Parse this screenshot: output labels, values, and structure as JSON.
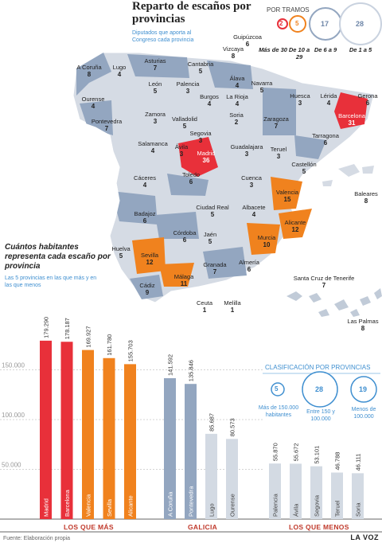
{
  "header": {
    "title": "Reparto de escaños por provincias",
    "subtitle": "Diputados que aporta al Congreso cada provincia"
  },
  "legend_tramos": {
    "title": "POR TRAMOS",
    "items": [
      {
        "value": "2",
        "label": "Más de 30",
        "color": "#e8303a"
      },
      {
        "value": "5",
        "label": "De 10 a 29",
        "color": "#f0821e"
      },
      {
        "value": "17",
        "label": "De 6 a 9",
        "color": "#93a6c0"
      },
      {
        "value": "28",
        "label": "De 1 a 5",
        "color": "#c9d2df"
      }
    ]
  },
  "provinces": [
    {
      "name": "A Coruña",
      "seats": "8"
    },
    {
      "name": "Lugo",
      "seats": "4"
    },
    {
      "name": "Asturias",
      "seats": "7"
    },
    {
      "name": "Cantabria",
      "seats": "5"
    },
    {
      "name": "Vizcaya",
      "seats": "8"
    },
    {
      "name": "Guipúzcoa",
      "seats": "6"
    },
    {
      "name": "Álava",
      "seats": "4"
    },
    {
      "name": "Navarra",
      "seats": "5"
    },
    {
      "name": "Huesca",
      "seats": "3"
    },
    {
      "name": "Lérida",
      "seats": "4"
    },
    {
      "name": "Gerona",
      "seats": "6"
    },
    {
      "name": "Barcelona",
      "seats": "31"
    },
    {
      "name": "Ourense",
      "seats": "4"
    },
    {
      "name": "Pontevedra",
      "seats": "7"
    },
    {
      "name": "León",
      "seats": "5"
    },
    {
      "name": "Palencia",
      "seats": "3"
    },
    {
      "name": "Burgos",
      "seats": "4"
    },
    {
      "name": "La Rioja",
      "seats": "4"
    },
    {
      "name": "Zaragoza",
      "seats": "7"
    },
    {
      "name": "Tarragona",
      "seats": "6"
    },
    {
      "name": "Zamora",
      "seats": "3"
    },
    {
      "name": "Valladolid",
      "seats": "5"
    },
    {
      "name": "Soria",
      "seats": "2"
    },
    {
      "name": "Segovia",
      "seats": "3"
    },
    {
      "name": "Salamanca",
      "seats": "4"
    },
    {
      "name": "Ávila",
      "seats": "3"
    },
    {
      "name": "Madrid",
      "seats": "36"
    },
    {
      "name": "Guadalajara",
      "seats": "3"
    },
    {
      "name": "Teruel",
      "seats": "3"
    },
    {
      "name": "Castellón",
      "seats": "5"
    },
    {
      "name": "Cáceres",
      "seats": "4"
    },
    {
      "name": "Toledo",
      "seats": "6"
    },
    {
      "name": "Cuenca",
      "seats": "3"
    },
    {
      "name": "Valencia",
      "seats": "15"
    },
    {
      "name": "Baleares",
      "seats": "8"
    },
    {
      "name": "Badajoz",
      "seats": "6"
    },
    {
      "name": "Ciudad Real",
      "seats": "5"
    },
    {
      "name": "Albacete",
      "seats": "4"
    },
    {
      "name": "Alicante",
      "seats": "12"
    },
    {
      "name": "Córdoba",
      "seats": "6"
    },
    {
      "name": "Jaén",
      "seats": "5"
    },
    {
      "name": "Murcia",
      "seats": "10"
    },
    {
      "name": "Huelva",
      "seats": "5"
    },
    {
      "name": "Sevilla",
      "seats": "12"
    },
    {
      "name": "Granada",
      "seats": "7"
    },
    {
      "name": "Almería",
      "seats": "6"
    },
    {
      "name": "Cádiz",
      "seats": "9"
    },
    {
      "name": "Málaga",
      "seats": "11"
    },
    {
      "name": "Ceuta",
      "seats": "1"
    },
    {
      "name": "Melilla",
      "seats": "1"
    },
    {
      "name": "Santa Cruz de Tenerife",
      "seats": "7"
    },
    {
      "name": "Las Palmas",
      "seats": "8"
    }
  ],
  "section": {
    "title": "Cuántos habitantes representa cada escaño por provincia",
    "subtitle": "Las 5 provincias en las que más y en las que menos"
  },
  "clasificacion": {
    "title": "CLASIFICACIÓN POR PROVINCIAS",
    "items": [
      {
        "value": "5",
        "label": "Más de 150.000 habitantes"
      },
      {
        "value": "28",
        "label": "Entre 150 y 100.000"
      },
      {
        "value": "19",
        "label": "Menos de 100.000"
      }
    ]
  },
  "chart_data": {
    "type": "bar",
    "title": "Cuántos habitantes representa cada escaño por provincia",
    "ylim": [
      0,
      200000
    ],
    "yticks": [
      50000,
      100000,
      150000
    ],
    "ytick_labels": [
      "50.000",
      "100.000",
      "150.000"
    ],
    "groups": [
      {
        "name": "LOS QUE MÁS",
        "categories": [
          "Madrid",
          "Barcelona",
          "Valencia",
          "Sevilla",
          "Alicante"
        ],
        "values": [
          179290,
          178187,
          169927,
          161780,
          155703
        ],
        "value_labels": [
          "179.290",
          "178.187",
          "169.927",
          "161.780",
          "155.703"
        ],
        "colors": [
          "#e8303a",
          "#e8303a",
          "#f0821e",
          "#f0821e",
          "#f0821e"
        ]
      },
      {
        "name": "GALICIA",
        "categories": [
          "A Coruña",
          "Pontevedra",
          "Lugo",
          "Ourense"
        ],
        "values": [
          141592,
          135846,
          85687,
          80573
        ],
        "value_labels": [
          "141.592",
          "135.846",
          "85.687",
          "80.573"
        ],
        "colors": [
          "#93a6c0",
          "#93a6c0",
          "#d3dae3",
          "#d3dae3"
        ]
      },
      {
        "name": "LOS QUE MENOS",
        "categories": [
          "Palencia",
          "Ávila",
          "Segovia",
          "Teruel",
          "Soria"
        ],
        "values": [
          55870,
          55672,
          53101,
          46788,
          46111
        ],
        "value_labels": [
          "55.870",
          "55.672",
          "53.101",
          "46.788",
          "46.111"
        ],
        "colors": [
          "#d3dae3",
          "#d3dae3",
          "#d3dae3",
          "#d3dae3",
          "#d3dae3"
        ]
      }
    ]
  },
  "footer": {
    "source": "Fuente: Elaboración propia",
    "brand": "LA VOZ"
  }
}
